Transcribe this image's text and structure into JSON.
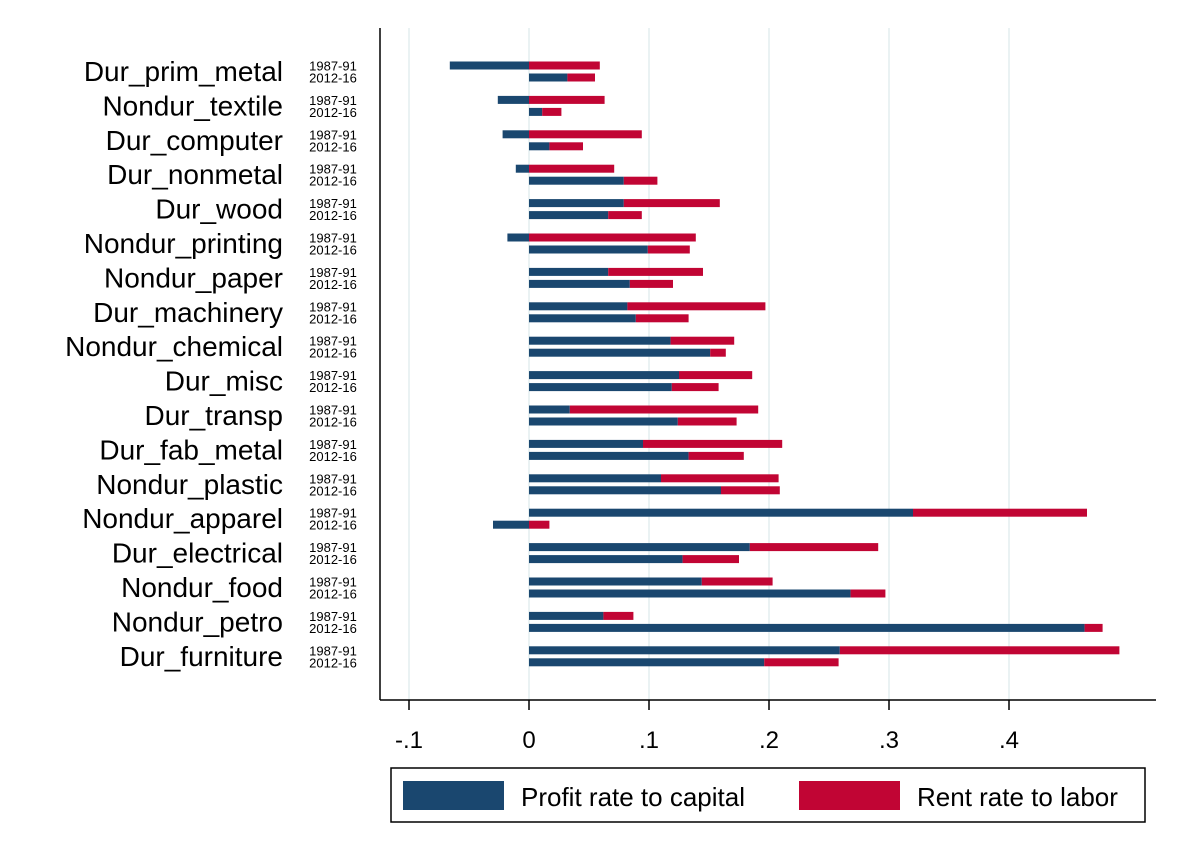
{
  "chart_data": {
    "type": "bar",
    "orientation": "horizontal",
    "stacked": true,
    "title": "",
    "xlabel": "",
    "ylabel": "",
    "periods": [
      "1987-91",
      "2012-16"
    ],
    "x_ticks": [
      -0.1,
      0,
      0.1,
      0.2,
      0.3,
      0.4
    ],
    "x_tick_labels": [
      "-.1",
      "0",
      ".1",
      ".2",
      ".3",
      ".4"
    ],
    "xlim": [
      -0.125,
      0.525
    ],
    "grid": true,
    "legend_position": "bottom",
    "series": [
      {
        "name": "Profit rate to capital",
        "color": "#1a476f"
      },
      {
        "name": "Rent rate to labor",
        "color": "#c10534"
      }
    ],
    "categories": [
      {
        "name": "Dur_prim_metal",
        "data": [
          {
            "period": "1987-91",
            "profit": -0.066,
            "rent": 0.059
          },
          {
            "period": "2012-16",
            "profit": 0.032,
            "rent": 0.023
          }
        ]
      },
      {
        "name": "Nondur_textile",
        "data": [
          {
            "period": "1987-91",
            "profit": -0.026,
            "rent": 0.063
          },
          {
            "period": "2012-16",
            "profit": 0.011,
            "rent": 0.016
          }
        ]
      },
      {
        "name": "Dur_computer",
        "data": [
          {
            "period": "1987-91",
            "profit": -0.022,
            "rent": 0.094
          },
          {
            "period": "2012-16",
            "profit": 0.017,
            "rent": 0.028
          }
        ]
      },
      {
        "name": "Dur_nonmetal",
        "data": [
          {
            "period": "1987-91",
            "profit": -0.011,
            "rent": 0.071
          },
          {
            "period": "2012-16",
            "profit": 0.079,
            "rent": 0.028
          }
        ]
      },
      {
        "name": "Dur_wood",
        "data": [
          {
            "period": "1987-91",
            "profit": 0.079,
            "rent": 0.08
          },
          {
            "period": "2012-16",
            "profit": 0.066,
            "rent": 0.028
          }
        ]
      },
      {
        "name": "Nondur_printing",
        "data": [
          {
            "period": "1987-91",
            "profit": -0.018,
            "rent": 0.139
          },
          {
            "period": "2012-16",
            "profit": 0.099,
            "rent": 0.035
          }
        ]
      },
      {
        "name": "Nondur_paper",
        "data": [
          {
            "period": "1987-91",
            "profit": 0.066,
            "rent": 0.079
          },
          {
            "period": "2012-16",
            "profit": 0.084,
            "rent": 0.036
          }
        ]
      },
      {
        "name": "Dur_machinery",
        "data": [
          {
            "period": "1987-91",
            "profit": 0.082,
            "rent": 0.115
          },
          {
            "period": "2012-16",
            "profit": 0.089,
            "rent": 0.044
          }
        ]
      },
      {
        "name": "Nondur_chemical",
        "data": [
          {
            "period": "1987-91",
            "profit": 0.118,
            "rent": 0.053
          },
          {
            "period": "2012-16",
            "profit": 0.151,
            "rent": 0.013
          }
        ]
      },
      {
        "name": "Dur_misc",
        "data": [
          {
            "period": "1987-91",
            "profit": 0.125,
            "rent": 0.061
          },
          {
            "period": "2012-16",
            "profit": 0.119,
            "rent": 0.039
          }
        ]
      },
      {
        "name": "Dur_transp",
        "data": [
          {
            "period": "1987-91",
            "profit": 0.034,
            "rent": 0.157
          },
          {
            "period": "2012-16",
            "profit": 0.124,
            "rent": 0.049
          }
        ]
      },
      {
        "name": "Dur_fab_metal",
        "data": [
          {
            "period": "1987-91",
            "profit": 0.095,
            "rent": 0.116
          },
          {
            "period": "2012-16",
            "profit": 0.133,
            "rent": 0.046
          }
        ]
      },
      {
        "name": "Nondur_plastic",
        "data": [
          {
            "period": "1987-91",
            "profit": 0.11,
            "rent": 0.098
          },
          {
            "period": "2012-16",
            "profit": 0.16,
            "rent": 0.049
          }
        ]
      },
      {
        "name": "Nondur_apparel",
        "data": [
          {
            "period": "1987-91",
            "profit": 0.32,
            "rent": 0.145
          },
          {
            "period": "2012-16",
            "profit": -0.03,
            "rent": 0.017
          }
        ]
      },
      {
        "name": "Dur_electrical",
        "data": [
          {
            "period": "1987-91",
            "profit": 0.184,
            "rent": 0.107
          },
          {
            "period": "2012-16",
            "profit": 0.128,
            "rent": 0.047
          }
        ]
      },
      {
        "name": "Nondur_food",
        "data": [
          {
            "period": "1987-91",
            "profit": 0.144,
            "rent": 0.059
          },
          {
            "period": "2012-16",
            "profit": 0.268,
            "rent": 0.029
          }
        ]
      },
      {
        "name": "Nondur_petro",
        "data": [
          {
            "period": "1987-91",
            "profit": 0.062,
            "rent": 0.025
          },
          {
            "period": "2012-16",
            "profit": 0.463,
            "rent": 0.015
          }
        ]
      },
      {
        "name": "Dur_furniture",
        "data": [
          {
            "period": "1987-91",
            "profit": 0.259,
            "rent": 0.233
          },
          {
            "period": "2012-16",
            "profit": 0.196,
            "rent": 0.062
          }
        ]
      }
    ]
  }
}
